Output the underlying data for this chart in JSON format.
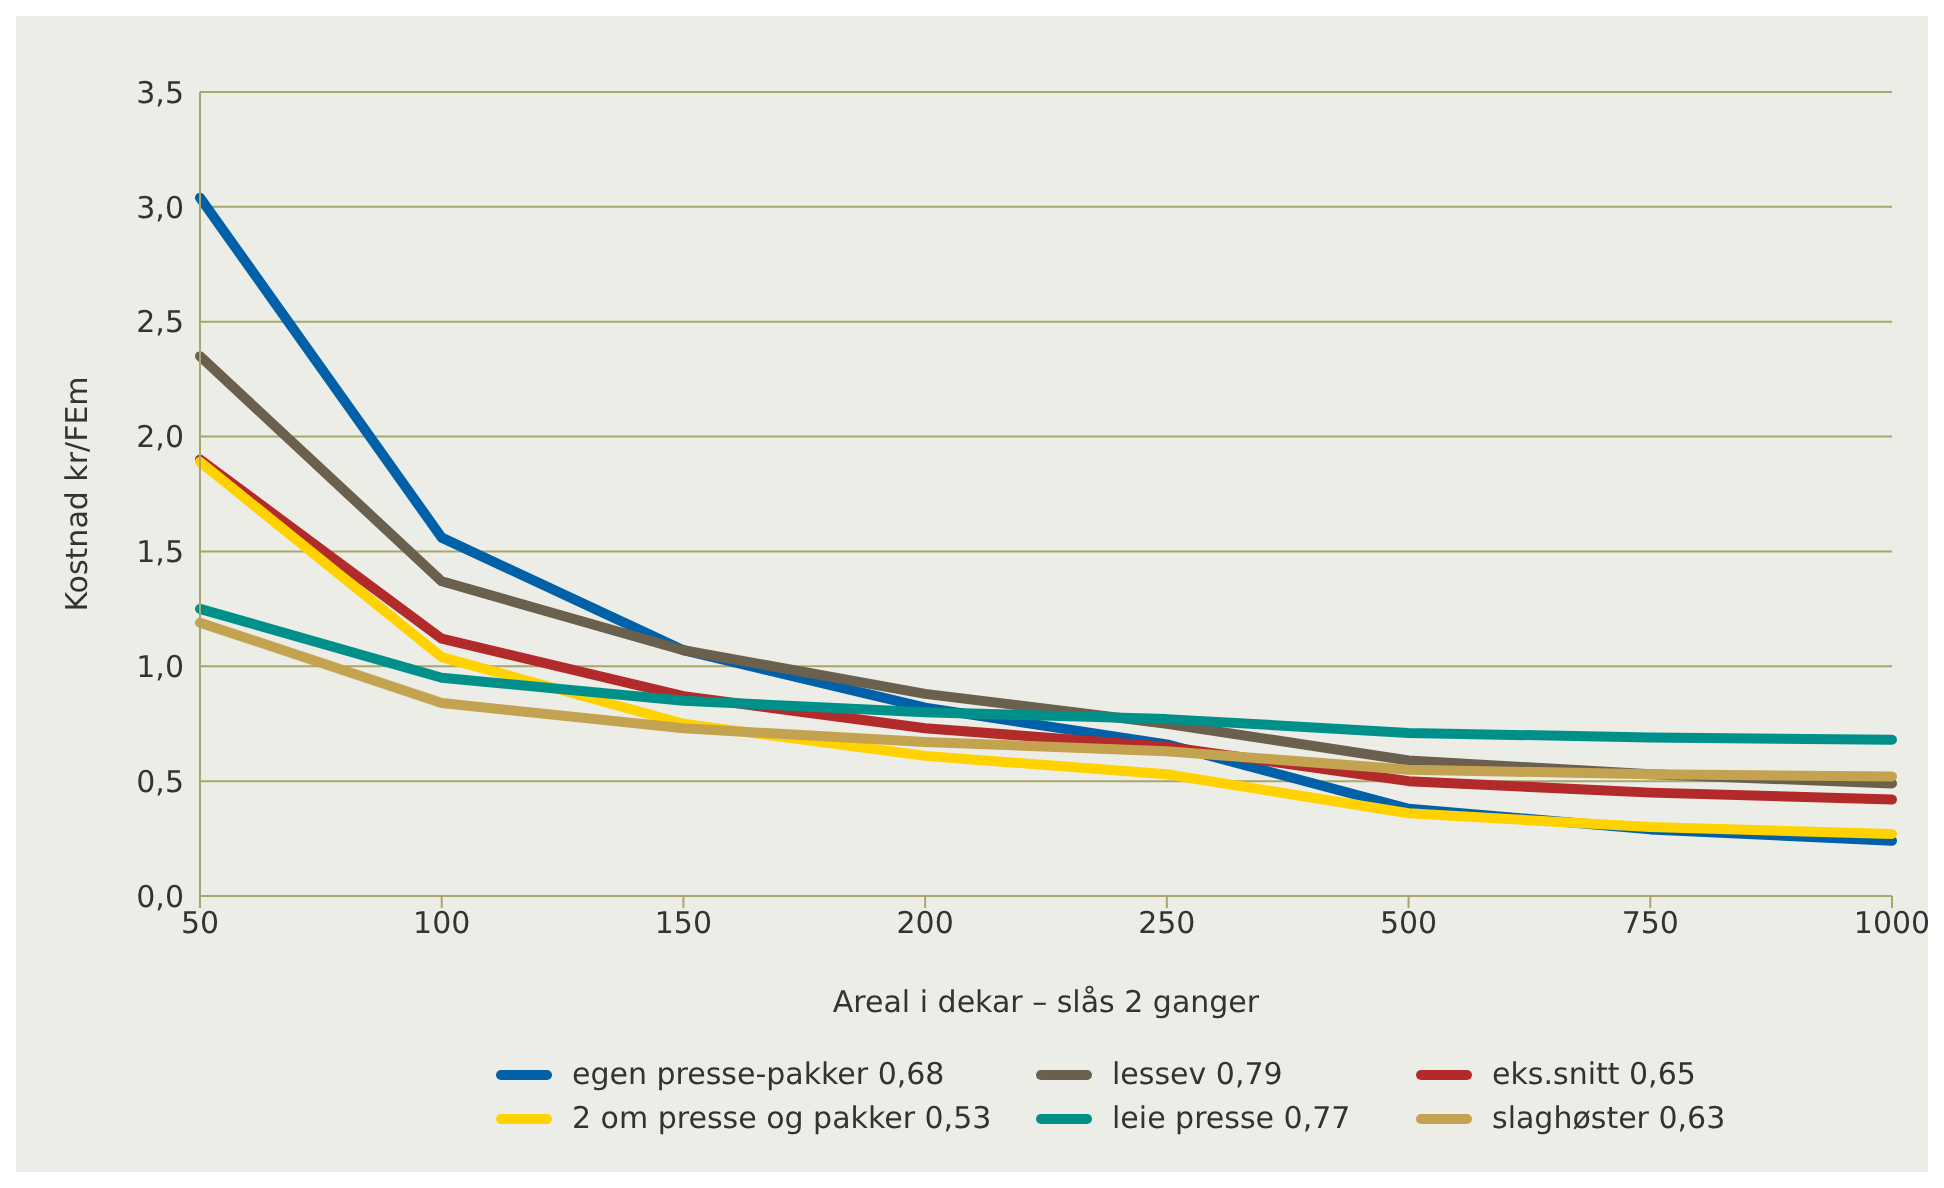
{
  "chart_data": {
    "type": "line",
    "xlabel": "Areal i dekar – slås 2 ganger",
    "ylabel": "Kostnad kr/FEm",
    "categories": [
      "50",
      "100",
      "150",
      "200",
      "250",
      "500",
      "750",
      "1000"
    ],
    "series": [
      {
        "name": "egen presse-pakker 0,68",
        "color": "#0060a8",
        "values": [
          3.04,
          1.56,
          1.07,
          0.82,
          0.66,
          0.38,
          0.29,
          0.24
        ]
      },
      {
        "name": "lessev 0,79",
        "color": "#6b604d",
        "values": [
          2.35,
          1.37,
          1.07,
          0.88,
          0.75,
          0.59,
          0.53,
          0.49
        ]
      },
      {
        "name": "eks.snitt 0,65",
        "color": "#b32a2a",
        "values": [
          1.9,
          1.12,
          0.87,
          0.73,
          0.65,
          0.5,
          0.45,
          0.42
        ]
      },
      {
        "name": "2 om presse og pakker 0,53",
        "color": "#ffd200",
        "values": [
          1.89,
          1.04,
          0.75,
          0.61,
          0.53,
          0.36,
          0.3,
          0.27
        ]
      },
      {
        "name": "leie presse 0,77",
        "color": "#00908a",
        "values": [
          1.25,
          0.95,
          0.85,
          0.8,
          0.77,
          0.71,
          0.69,
          0.68
        ]
      },
      {
        "name": "slaghøster 0,63",
        "color": "#c4a350",
        "values": [
          1.19,
          0.84,
          0.73,
          0.67,
          0.63,
          0.55,
          0.53,
          0.52
        ]
      }
    ],
    "ylim": [
      0,
      3.5
    ],
    "yticks": [
      {
        "value": 0,
        "label": "0,0"
      },
      {
        "value": 0.5,
        "label": "0,5"
      },
      {
        "value": 1,
        "label": "1,0"
      },
      {
        "value": 1.5,
        "label": "1,5"
      },
      {
        "value": 2,
        "label": "2,0"
      },
      {
        "value": 2.5,
        "label": "2,5"
      },
      {
        "value": 3,
        "label": "3,0"
      },
      {
        "value": 3.5,
        "label": "3,5"
      }
    ],
    "grid": "y",
    "legend": "bottom",
    "marker": "none",
    "line_style": "solid"
  }
}
